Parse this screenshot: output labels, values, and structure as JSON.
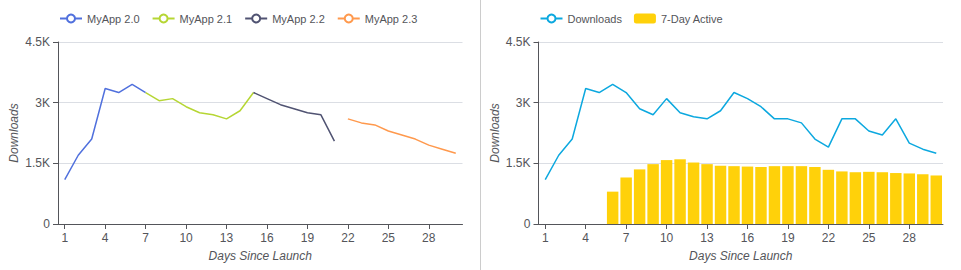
{
  "chart_data": [
    {
      "type": "line",
      "xlabel": "Days Since Launch",
      "ylabel": "Downloads",
      "x": [
        1,
        2,
        3,
        4,
        5,
        6,
        7,
        8,
        9,
        10,
        11,
        12,
        13,
        14,
        15,
        16,
        17,
        18,
        19,
        20,
        21,
        22,
        23,
        24,
        25,
        26,
        27,
        28,
        29,
        30
      ],
      "xlim": [
        0.5,
        30.5
      ],
      "xticks": [
        1,
        4,
        7,
        10,
        13,
        16,
        19,
        22,
        25,
        28
      ],
      "ylim": [
        0,
        4500
      ],
      "yticks": [
        0,
        {
          "value": 1500,
          "label": "1.5K"
        },
        {
          "value": 3000,
          "label": "3K"
        },
        {
          "value": 4500,
          "label": "4.5K"
        }
      ],
      "grid": true,
      "legend": "upper left",
      "series": [
        {
          "name": "MyApp 2.0",
          "values": [
            1100,
            1700,
            2100,
            3350,
            3250,
            3450,
            3250,
            null,
            null,
            null,
            null,
            null,
            null,
            null,
            null,
            null,
            null,
            null,
            null,
            null,
            null,
            null,
            null,
            null,
            null,
            null,
            null,
            null,
            null,
            null
          ]
        },
        {
          "name": "MyApp 2.1",
          "values": [
            null,
            null,
            null,
            null,
            null,
            null,
            3250,
            3050,
            3100,
            2900,
            2750,
            2700,
            2600,
            2800,
            3250,
            null,
            null,
            null,
            null,
            null,
            null,
            null,
            null,
            null,
            null,
            null,
            null,
            null,
            null,
            null
          ]
        },
        {
          "name": "MyApp 2.2",
          "values": [
            null,
            null,
            null,
            null,
            null,
            null,
            null,
            null,
            null,
            null,
            null,
            null,
            null,
            null,
            3250,
            3100,
            2950,
            2850,
            2750,
            2700,
            2050,
            null,
            null,
            null,
            null,
            null,
            null,
            null,
            null,
            null
          ]
        },
        {
          "name": "MyApp 2.3",
          "values": [
            null,
            null,
            null,
            null,
            null,
            null,
            null,
            null,
            null,
            null,
            null,
            null,
            null,
            null,
            null,
            null,
            null,
            null,
            null,
            null,
            null,
            2600,
            2500,
            2450,
            2300,
            2200,
            2100,
            1950,
            1850,
            1750
          ]
        }
      ]
    },
    {
      "type": "line",
      "xlabel": "Days Since Launch",
      "ylabel": "Downloads",
      "x": [
        1,
        2,
        3,
        4,
        5,
        6,
        7,
        8,
        9,
        10,
        11,
        12,
        13,
        14,
        15,
        16,
        17,
        18,
        19,
        20,
        21,
        22,
        23,
        24,
        25,
        26,
        27,
        28,
        29,
        30
      ],
      "xlim": [
        0.5,
        30.5
      ],
      "xticks": [
        1,
        4,
        7,
        10,
        13,
        16,
        19,
        22,
        25,
        28
      ],
      "ylim": [
        0,
        4500
      ],
      "yticks": [
        0,
        {
          "value": 1500,
          "label": "1.5K"
        },
        {
          "value": 3000,
          "label": "3K"
        },
        {
          "value": 4500,
          "label": "4.5K"
        }
      ],
      "grid": true,
      "legend": "upper left",
      "series": [
        {
          "name": "Downloads",
          "type": "line",
          "values": [
            1100,
            1700,
            2100,
            3350,
            3250,
            3450,
            3250,
            2850,
            2700,
            3100,
            2750,
            2650,
            2600,
            2800,
            3250,
            3100,
            2900,
            2600,
            2600,
            2500,
            2100,
            1900,
            2600,
            2600,
            2300,
            2200,
            2600,
            2000,
            1850,
            1750
          ]
        },
        {
          "name": "7-Day Active",
          "type": "bar",
          "values": [
            null,
            null,
            null,
            null,
            null,
            800,
            1150,
            1350,
            1480,
            1580,
            1600,
            1520,
            1480,
            1440,
            1430,
            1420,
            1410,
            1430,
            1430,
            1430,
            1410,
            1340,
            1300,
            1280,
            1290,
            1280,
            1260,
            1250,
            1230,
            1200
          ]
        }
      ]
    }
  ]
}
